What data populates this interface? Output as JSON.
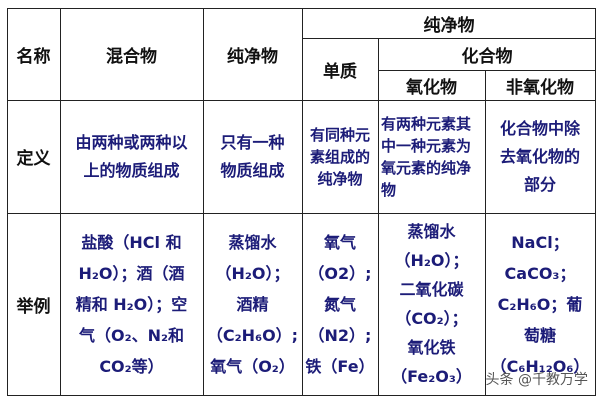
{
  "header": {
    "name": "名称",
    "mixture": "混合物",
    "pure": "纯净物",
    "pure_group": "纯净物",
    "element": "单质",
    "compound": "化合物",
    "oxide": "氧化物",
    "non_oxide": "非氧化物"
  },
  "definition": {
    "label": "定义",
    "mixture": [
      "由两种或两种以",
      "上的物质组成"
    ],
    "pure": [
      "只有一种",
      "物质组成"
    ],
    "element": [
      "有同种元",
      "素组成的",
      "纯净物"
    ],
    "oxide": [
      "有两种元素其",
      "中一种元素为",
      "氧元素的纯净",
      "物"
    ],
    "non_oxide": [
      "化合物中除",
      "去氧化物的",
      "部分"
    ]
  },
  "examples": {
    "label": "举例",
    "mixture": [
      "盐酸（HCl 和",
      "H₂O）；酒（酒",
      "精和 H₂O）；空",
      "气（O₂、N₂和",
      "CO₂等）"
    ],
    "pure": [
      "蒸馏水",
      "（H₂O）；",
      "酒精",
      "（C₂H₆O）;",
      "氧气（O₂）"
    ],
    "element": [
      "氧气",
      "（O2）;",
      "氮气",
      "（N2）;",
      "铁（Fe）"
    ],
    "oxide": [
      "蒸馏水",
      "（H₂O）；",
      "二氧化碳",
      "（CO₂）；",
      "氧化铁",
      "（Fe₂O₃）"
    ],
    "non_oxide": [
      "NaCl；",
      "CaCO₃；",
      "C₂H₆O；葡",
      "萄糖",
      "（C₆H₁₂O₆）"
    ]
  },
  "watermark": "头条 @千教万学"
}
